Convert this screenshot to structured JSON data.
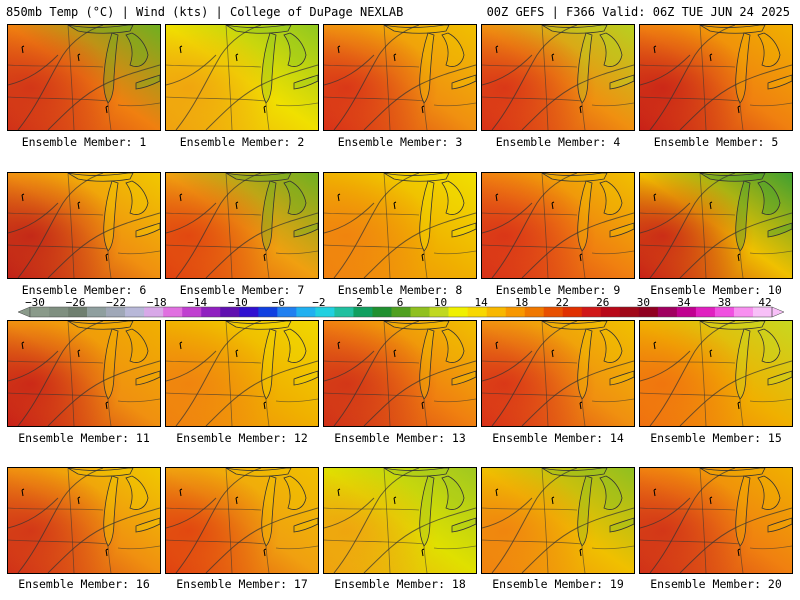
{
  "header": {
    "left": "850mb Temp (°C) | Wind (kts) | College of DuPage NEXLAB",
    "right": "00Z GEFS | F366 Valid: 06Z TUE JUN 24 2025"
  },
  "colorbar": {
    "labels": [
      "−30",
      "−26",
      "−22",
      "−18",
      "−14",
      "−10",
      "−6",
      "−2",
      "2",
      "6",
      "10",
      "14",
      "18",
      "22",
      "26",
      "30",
      "34",
      "38",
      "42"
    ],
    "colors": [
      "#8a9a8a",
      "#7f8f80",
      "#6f7f70",
      "#8f9f9f",
      "#a0a8b8",
      "#b8b8d8",
      "#d8a8e8",
      "#e070e0",
      "#c040d0",
      "#9020c0",
      "#6010b0",
      "#3010d0",
      "#1040e0",
      "#2080f0",
      "#20b0f0",
      "#20d0e0",
      "#20c0a0",
      "#10a060",
      "#209030",
      "#50a020",
      "#90c020",
      "#c0d820",
      "#f0f000",
      "#f8d800",
      "#f8b800",
      "#f89800",
      "#f07800",
      "#e85000",
      "#e03000",
      "#d01818",
      "#b80818",
      "#a00818",
      "#900020",
      "#a00060",
      "#c00090",
      "#e020c0",
      "#f050e0",
      "#f890f0",
      "#f8c0f8"
    ]
  },
  "members": [
    {
      "label": "Ensemble Member: 1",
      "base": "#f08010",
      "hot": "#d03018",
      "cool": "#70b020"
    },
    {
      "label": "Ensemble Member: 2",
      "base": "#f0e000",
      "hot": "#f0a010",
      "cool": "#90c820"
    },
    {
      "label": "Ensemble Member: 3",
      "base": "#f09010",
      "hot": "#d83018",
      "cool": "#f0c000"
    },
    {
      "label": "Ensemble Member: 4",
      "base": "#f09010",
      "hot": "#d83018",
      "cool": "#b8d020"
    },
    {
      "label": "Ensemble Member: 5",
      "base": "#f08010",
      "hot": "#c82018",
      "cool": "#f0b000"
    },
    {
      "label": "Ensemble Member: 6",
      "base": "#f09010",
      "hot": "#c02018",
      "cool": "#f0c800"
    },
    {
      "label": "Ensemble Member: 7",
      "base": "#f0a010",
      "hot": "#e04010",
      "cool": "#70b020"
    },
    {
      "label": "Ensemble Member: 8",
      "base": "#f0b000",
      "hot": "#f08010",
      "cool": "#f0e000"
    },
    {
      "label": "Ensemble Member: 9",
      "base": "#f08010",
      "hot": "#d83018",
      "cool": "#f0c000"
    },
    {
      "label": "Ensemble Member: 10",
      "base": "#f0c000",
      "hot": "#c82018",
      "cool": "#40a030"
    },
    {
      "label": "Ensemble Member: 11",
      "base": "#f09010",
      "hot": "#c82018",
      "cool": "#f0b000"
    },
    {
      "label": "Ensemble Member: 12",
      "base": "#f0b000",
      "hot": "#f08010",
      "cool": "#f0d800"
    },
    {
      "label": "Ensemble Member: 13",
      "base": "#f08010",
      "hot": "#d03018",
      "cool": "#f0c000"
    },
    {
      "label": "Ensemble Member: 14",
      "base": "#f09010",
      "hot": "#d83018",
      "cool": "#f0c000"
    },
    {
      "label": "Ensemble Member: 15",
      "base": "#f0b000",
      "hot": "#f07010",
      "cool": "#c8d820"
    },
    {
      "label": "Ensemble Member: 16",
      "base": "#f09010",
      "hot": "#d03018",
      "cool": "#f0c800"
    },
    {
      "label": "Ensemble Member: 17",
      "base": "#f0a010",
      "hot": "#e04010",
      "cool": "#f0c000"
    },
    {
      "label": "Ensemble Member: 18",
      "base": "#e0e000",
      "hot": "#f0a010",
      "cool": "#a0c820"
    },
    {
      "label": "Ensemble Member: 19",
      "base": "#f0c000",
      "hot": "#f08010",
      "cool": "#90c020"
    },
    {
      "label": "Ensemble Member: 20",
      "base": "#f08010",
      "hot": "#d03018",
      "cool": "#f0b000"
    }
  ]
}
